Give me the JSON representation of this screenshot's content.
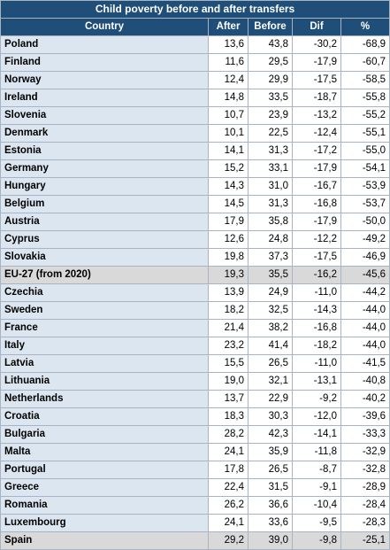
{
  "title": "Child poverty before and after transfers",
  "headers": {
    "country": "Country",
    "after": "After",
    "before": "Before",
    "dif": "Dif",
    "pct": "%"
  },
  "rows": [
    {
      "country": "Poland",
      "after": "13,6",
      "before": "43,8",
      "dif": "-30,2",
      "pct": "-68,9",
      "highlight": false
    },
    {
      "country": "Finland",
      "after": "11,6",
      "before": "29,5",
      "dif": "-17,9",
      "pct": "-60,7",
      "highlight": false
    },
    {
      "country": "Norway",
      "after": "12,4",
      "before": "29,9",
      "dif": "-17,5",
      "pct": "-58,5",
      "highlight": false
    },
    {
      "country": "Ireland",
      "after": "14,8",
      "before": "33,5",
      "dif": "-18,7",
      "pct": "-55,8",
      "highlight": false
    },
    {
      "country": "Slovenia",
      "after": "10,7",
      "before": "23,9",
      "dif": "-13,2",
      "pct": "-55,2",
      "highlight": false
    },
    {
      "country": "Denmark",
      "after": "10,1",
      "before": "22,5",
      "dif": "-12,4",
      "pct": "-55,1",
      "highlight": false
    },
    {
      "country": "Estonia",
      "after": "14,1",
      "before": "31,3",
      "dif": "-17,2",
      "pct": "-55,0",
      "highlight": false
    },
    {
      "country": "Germany",
      "after": "15,2",
      "before": "33,1",
      "dif": "-17,9",
      "pct": "-54,1",
      "highlight": false
    },
    {
      "country": "Hungary",
      "after": "14,3",
      "before": "31,0",
      "dif": "-16,7",
      "pct": "-53,9",
      "highlight": false
    },
    {
      "country": "Belgium",
      "after": "14,5",
      "before": "31,3",
      "dif": "-16,8",
      "pct": "-53,7",
      "highlight": false
    },
    {
      "country": "Austria",
      "after": "17,9",
      "before": "35,8",
      "dif": "-17,9",
      "pct": "-50,0",
      "highlight": false
    },
    {
      "country": "Cyprus",
      "after": "12,6",
      "before": "24,8",
      "dif": "-12,2",
      "pct": "-49,2",
      "highlight": false
    },
    {
      "country": "Slovakia",
      "after": "19,8",
      "before": "37,3",
      "dif": "-17,5",
      "pct": "-46,9",
      "highlight": false
    },
    {
      "country": "EU-27 (from 2020)",
      "after": "19,3",
      "before": "35,5",
      "dif": "-16,2",
      "pct": "-45,6",
      "highlight": true
    },
    {
      "country": "Czechia",
      "after": "13,9",
      "before": "24,9",
      "dif": "-11,0",
      "pct": "-44,2",
      "highlight": false
    },
    {
      "country": "Sweden",
      "after": "18,2",
      "before": "32,5",
      "dif": "-14,3",
      "pct": "-44,0",
      "highlight": false
    },
    {
      "country": "France",
      "after": "21,4",
      "before": "38,2",
      "dif": "-16,8",
      "pct": "-44,0",
      "highlight": false
    },
    {
      "country": "Italy",
      "after": "23,2",
      "before": "41,4",
      "dif": "-18,2",
      "pct": "-44,0",
      "highlight": false
    },
    {
      "country": "Latvia",
      "after": "15,5",
      "before": "26,5",
      "dif": "-11,0",
      "pct": "-41,5",
      "highlight": false
    },
    {
      "country": "Lithuania",
      "after": "19,0",
      "before": "32,1",
      "dif": "-13,1",
      "pct": "-40,8",
      "highlight": false
    },
    {
      "country": "Netherlands",
      "after": "13,7",
      "before": "22,9",
      "dif": "-9,2",
      "pct": "-40,2",
      "highlight": false
    },
    {
      "country": "Croatia",
      "after": "18,3",
      "before": "30,3",
      "dif": "-12,0",
      "pct": "-39,6",
      "highlight": false
    },
    {
      "country": "Bulgaria",
      "after": "28,2",
      "before": "42,3",
      "dif": "-14,1",
      "pct": "-33,3",
      "highlight": false
    },
    {
      "country": "Malta",
      "after": "24,1",
      "before": "35,9",
      "dif": "-11,8",
      "pct": "-32,9",
      "highlight": false
    },
    {
      "country": "Portugal",
      "after": "17,8",
      "before": "26,5",
      "dif": "-8,7",
      "pct": "-32,8",
      "highlight": false
    },
    {
      "country": "Greece",
      "after": "22,4",
      "before": "31,5",
      "dif": "-9,1",
      "pct": "-28,9",
      "highlight": false
    },
    {
      "country": "Romania",
      "after": "26,2",
      "before": "36,6",
      "dif": "-10,4",
      "pct": "-28,4",
      "highlight": false
    },
    {
      "country": "Luxembourg",
      "after": "24,1",
      "before": "33,6",
      "dif": "-9,5",
      "pct": "-28,3",
      "highlight": false
    },
    {
      "country": "Spain",
      "after": "29,2",
      "before": "39,0",
      "dif": "-9,8",
      "pct": "-25,1",
      "highlight": true
    }
  ],
  "colors": {
    "header_bg": "#1f4e79",
    "country_bg": "#dce6f1",
    "highlight_bg": "#d9d9d9"
  }
}
